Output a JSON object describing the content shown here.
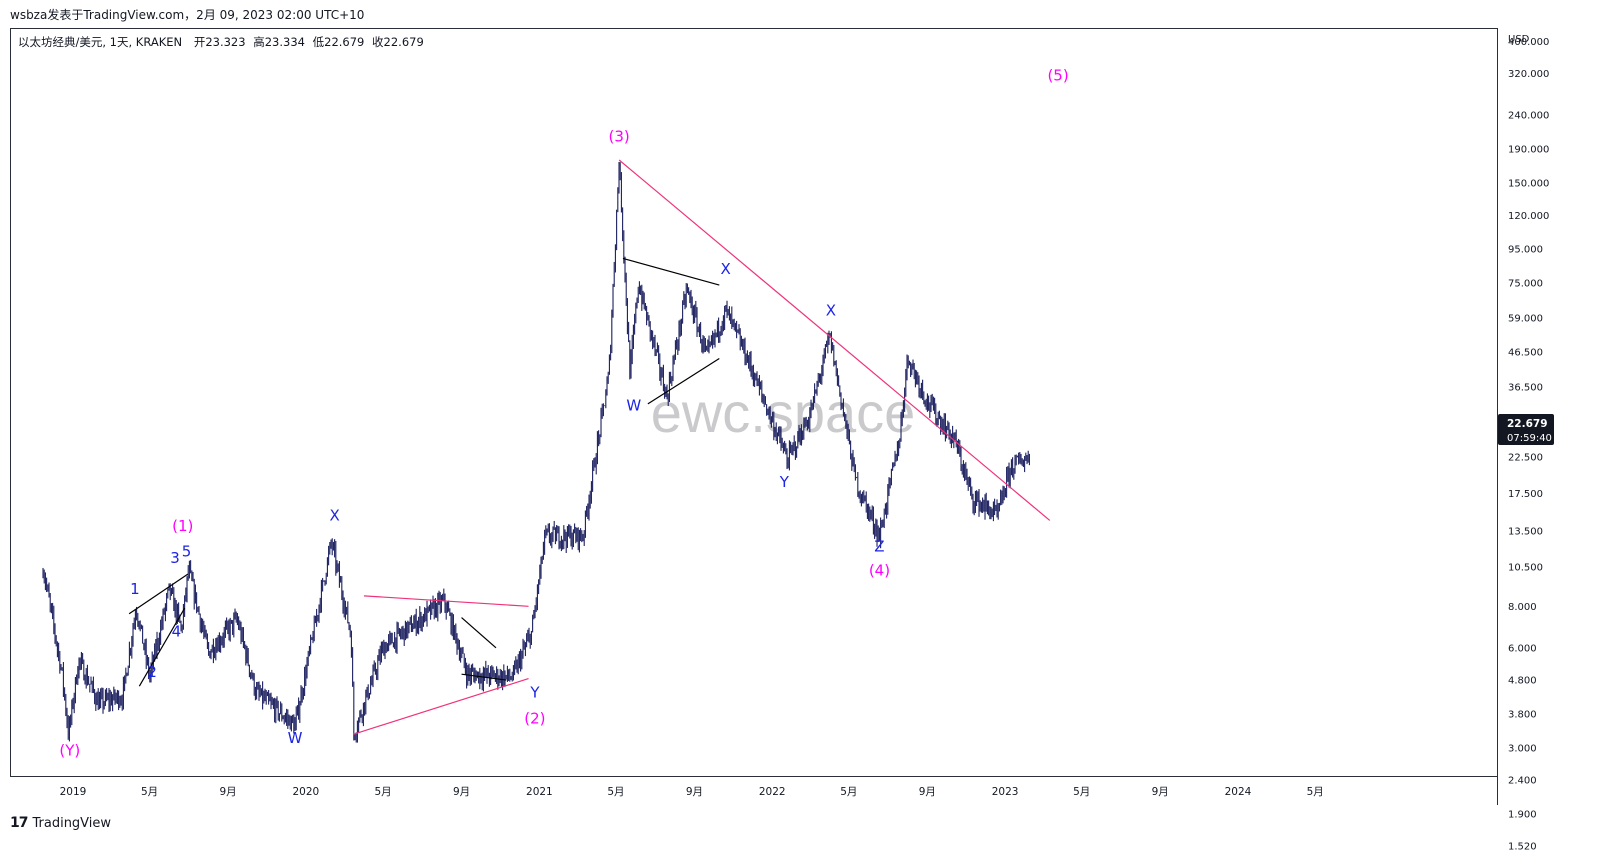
{
  "header": {
    "publish_line": "wsbza发表于TradingView.com，2月 09, 2023 02:00 UTC+10"
  },
  "legend": {
    "symbol": "以太坊经典/美元, 1天, KRAKEN",
    "open_label": "开",
    "open": "23.323",
    "high_label": "高",
    "high": "23.334",
    "low_label": "低",
    "low": "22.679",
    "close_label": "收",
    "close": "22.679"
  },
  "watermark": "ewc.space",
  "footer": {
    "brand": "TradingView"
  },
  "price_tag": {
    "price": "22.679",
    "countdown": "07:59:40",
    "color": "#131722"
  },
  "colors": {
    "candles": "#1b1f5e",
    "pink": "#f0327a",
    "magenta": "#ff00ff",
    "blue": "#1c24e6",
    "black": "#000000"
  },
  "chart_data": {
    "type": "candlestick",
    "title": "以太坊经典/美元, 1天, KRAKEN",
    "y_unit": "USD",
    "y_scale": "log",
    "yticks": [
      "400.000",
      "320.000",
      "240.000",
      "190.000",
      "150.000",
      "120.000",
      "95.000",
      "75.000",
      "59.000",
      "46.500",
      "36.500",
      "28.500",
      "22.500",
      "17.500",
      "13.500",
      "10.500",
      "8.000",
      "6.000",
      "4.800",
      "3.800",
      "3.000",
      "2.400",
      "1.900",
      "1.520"
    ],
    "xticks": [
      "2019",
      "5月",
      "9月",
      "2020",
      "5月",
      "9月",
      "2021",
      "5月",
      "9月",
      "2022",
      "5月",
      "9月",
      "2023",
      "5月",
      "9月",
      "2024",
      "5月"
    ],
    "price_path": [
      [
        "2018-11-15",
        10.5
      ],
      [
        "2018-12-15",
        5.0
      ],
      [
        "2018-12-25",
        3.3
      ],
      [
        "2019-01-10",
        5.5
      ],
      [
        "2019-02-10",
        4.1
      ],
      [
        "2019-03-20",
        4.3
      ],
      [
        "2019-04-10",
        8.0
      ],
      [
        "2019-05-01",
        4.9
      ],
      [
        "2019-06-01",
        9.0
      ],
      [
        "2019-06-20",
        6.8
      ],
      [
        "2019-07-01",
        10.3
      ],
      [
        "2019-08-01",
        5.8
      ],
      [
        "2019-09-15",
        7.3
      ],
      [
        "2019-10-15",
        4.4
      ],
      [
        "2019-12-15",
        3.5
      ],
      [
        "2020-02-10",
        12.5
      ],
      [
        "2020-03-12",
        6.5
      ],
      [
        "2020-03-16",
        3.3
      ],
      [
        "2020-05-01",
        6.0
      ],
      [
        "2020-08-05",
        8.3
      ],
      [
        "2020-09-10",
        5.0
      ],
      [
        "2020-11-20",
        4.9
      ],
      [
        "2020-12-20",
        6.7
      ],
      [
        "2021-01-10",
        13.0
      ],
      [
        "2021-03-10",
        13.0
      ],
      [
        "2021-04-20",
        40.0
      ],
      [
        "2021-05-06",
        176.0
      ],
      [
        "2021-05-23",
        40.0
      ],
      [
        "2021-06-05",
        75.0
      ],
      [
        "2021-07-20",
        34.0
      ],
      [
        "2021-08-20",
        72.0
      ],
      [
        "2021-09-20",
        45.0
      ],
      [
        "2021-10-20",
        62.0
      ],
      [
        "2021-11-20",
        46.0
      ],
      [
        "2022-01-25",
        22.0
      ],
      [
        "2022-03-01",
        30.0
      ],
      [
        "2022-04-01",
        52.0
      ],
      [
        "2022-05-12",
        19.0
      ],
      [
        "2022-06-18",
        13.0
      ],
      [
        "2022-07-20",
        26.0
      ],
      [
        "2022-08-01",
        45.0
      ],
      [
        "2022-09-01",
        33.0
      ],
      [
        "2022-10-15",
        25.0
      ],
      [
        "2022-11-10",
        17.0
      ],
      [
        "2022-12-20",
        15.0
      ],
      [
        "2023-01-10",
        21.0
      ],
      [
        "2023-02-09",
        22.7
      ]
    ],
    "wave_labels": [
      {
        "text": "(Y)",
        "date": "2018-12-27",
        "price": 2.85,
        "color": "magenta"
      },
      {
        "text": "1",
        "date": "2019-04-08",
        "price": 8.7,
        "color": "blue"
      },
      {
        "text": "2",
        "date": "2019-05-05",
        "price": 4.9,
        "color": "blue"
      },
      {
        "text": "3",
        "date": "2019-06-10",
        "price": 10.8,
        "color": "blue"
      },
      {
        "text": "4",
        "date": "2019-06-12",
        "price": 6.5,
        "color": "blue"
      },
      {
        "text": "5",
        "date": "2019-06-28",
        "price": 11.3,
        "color": "blue"
      },
      {
        "text": "(1)",
        "date": "2019-06-22",
        "price": 13.5,
        "color": "magenta"
      },
      {
        "text": "W",
        "date": "2019-12-15",
        "price": 3.1,
        "color": "blue"
      },
      {
        "text": "X",
        "date": "2020-02-15",
        "price": 14.5,
        "color": "blue"
      },
      {
        "text": "Y",
        "date": "2020-12-25",
        "price": 4.25,
        "color": "blue"
      },
      {
        "text": "(2)",
        "date": "2020-12-25",
        "price": 3.55,
        "color": "magenta"
      },
      {
        "text": "(3)",
        "date": "2021-05-06",
        "price": 200.0,
        "color": "magenta"
      },
      {
        "text": "W",
        "date": "2021-05-29",
        "price": 31.0,
        "color": "blue"
      },
      {
        "text": "X",
        "date": "2021-10-20",
        "price": 80.0,
        "color": "blue"
      },
      {
        "text": "Y",
        "date": "2022-01-20",
        "price": 18.3,
        "color": "blue"
      },
      {
        "text": "X",
        "date": "2022-04-03",
        "price": 60.0,
        "color": "blue"
      },
      {
        "text": "Z",
        "date": "2022-06-18",
        "price": 11.7,
        "color": "blue"
      },
      {
        "text": "(4)",
        "date": "2022-06-18",
        "price": 9.9,
        "color": "magenta"
      },
      {
        "text": "(5)",
        "date": "2023-03-25",
        "price": 305.0,
        "color": "magenta"
      }
    ],
    "trendlines": [
      {
        "color": "pink",
        "from": [
          "2021-05-06",
          176.0
        ],
        "to": [
          "2023-03-12",
          14.5
        ]
      },
      {
        "color": "pink",
        "from": [
          "2020-03-16",
          3.3
        ],
        "to": [
          "2020-12-15",
          4.85
        ]
      },
      {
        "color": "pink",
        "from": [
          "2020-04-01",
          8.6
        ],
        "to": [
          "2020-12-15",
          8.0
        ]
      },
      {
        "color": "black",
        "from": [
          "2021-05-12",
          89.0
        ],
        "to": [
          "2021-10-10",
          74.0
        ]
      },
      {
        "color": "black",
        "from": [
          "2021-06-20",
          32.5
        ],
        "to": [
          "2021-10-10",
          44.5
        ]
      },
      {
        "color": "black",
        "from": [
          "2020-09-01",
          7.4
        ],
        "to": [
          "2020-10-25",
          6.0
        ]
      },
      {
        "color": "black",
        "from": [
          "2020-09-01",
          5.0
        ],
        "to": [
          "2020-11-10",
          4.8
        ]
      },
      {
        "color": "black",
        "from": [
          "2019-03-30",
          7.6
        ],
        "to": [
          "2019-06-30",
          10.0
        ]
      },
      {
        "color": "black",
        "from": [
          "2019-04-15",
          4.6
        ],
        "to": [
          "2019-06-25",
          7.9
        ]
      }
    ]
  }
}
